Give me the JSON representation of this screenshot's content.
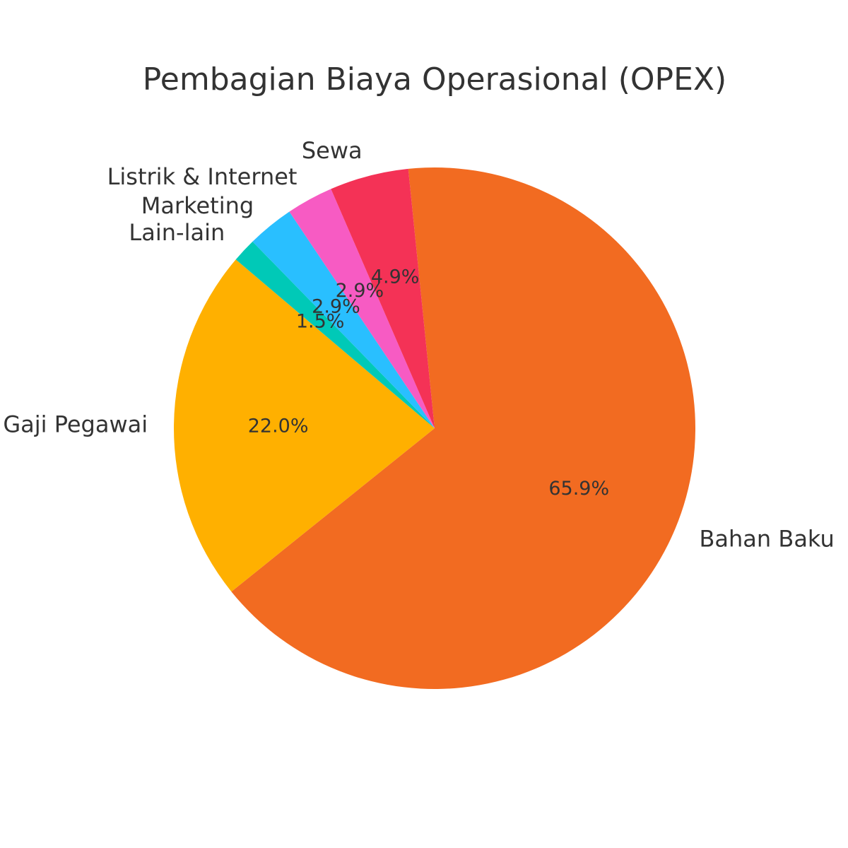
{
  "chart_data": {
    "type": "pie",
    "title": "Pembagian Biaya Operasional (OPEX)",
    "categories": [
      "Bahan Baku",
      "Gaji Pegawai",
      "Lain-lain",
      "Marketing",
      "Listrik & Internet",
      "Sewa"
    ],
    "values": [
      65.9,
      22.0,
      1.5,
      2.9,
      2.9,
      4.9
    ],
    "percent_labels": [
      "65.9%",
      "22.0%",
      "1.5%",
      "2.9%",
      "2.9%",
      "4.9%"
    ],
    "colors": [
      "#F26B21",
      "#FFB000",
      "#00C9B7",
      "#29BFFF",
      "#F75BC3",
      "#F43256"
    ],
    "label_color": "#333333"
  }
}
